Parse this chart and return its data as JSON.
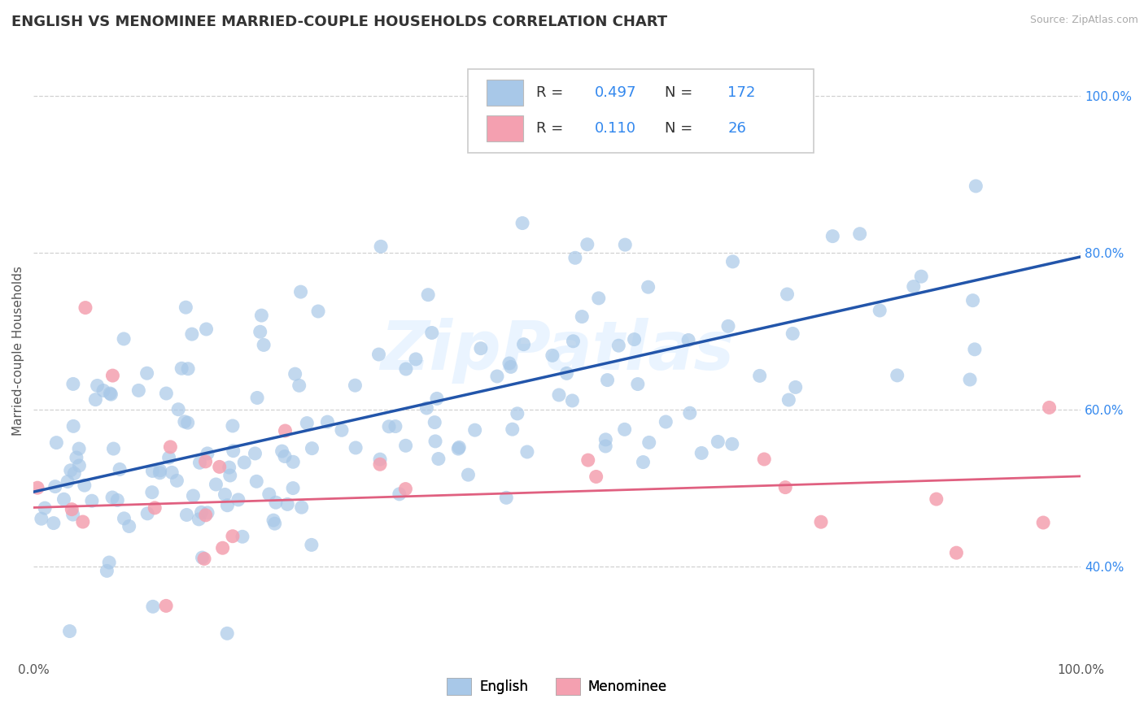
{
  "title": "ENGLISH VS MENOMINEE MARRIED-COUPLE HOUSEHOLDS CORRELATION CHART",
  "source": "Source: ZipAtlas.com",
  "ylabel": "Married-couple Households",
  "watermark": "ZipPatlas",
  "english_R": 0.497,
  "english_N": 172,
  "menominee_R": 0.11,
  "menominee_N": 26,
  "xlim": [
    0.0,
    1.0
  ],
  "ylim": [
    0.28,
    1.07
  ],
  "english_color": "#a8c8e8",
  "english_line_color": "#2255aa",
  "menominee_color": "#f4a0b0",
  "menominee_line_color": "#e06080",
  "background_color": "#ffffff",
  "grid_color": "#cccccc",
  "title_fontsize": 13,
  "label_fontsize": 11,
  "tick_fontsize": 11,
  "legend_color": "#3388ee",
  "right_tick_color": "#3388ee",
  "x_tick_labels": [
    "0.0%",
    "100.0%"
  ],
  "x_tick_vals": [
    0.0,
    1.0
  ],
  "y_tick_vals": [
    0.4,
    0.6,
    0.8,
    1.0
  ],
  "y_tick_labels": [
    "40.0%",
    "60.0%",
    "80.0%",
    "100.0%"
  ],
  "eng_line_y0": 0.495,
  "eng_line_y1": 0.795,
  "men_line_y0": 0.475,
  "men_line_y1": 0.515
}
